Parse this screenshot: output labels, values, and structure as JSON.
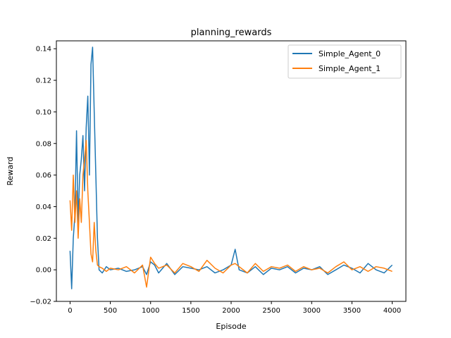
{
  "chart_data": {
    "type": "line",
    "title": "planning_rewards",
    "xlabel": "Episode",
    "ylabel": "Reward",
    "xlim": [
      -170,
      4170
    ],
    "ylim": [
      -0.02,
      0.145
    ],
    "xticks": [
      0,
      500,
      1000,
      1500,
      2000,
      2500,
      3000,
      3500,
      4000
    ],
    "yticks": [
      -0.02,
      0.0,
      0.02,
      0.04,
      0.06,
      0.08,
      0.1,
      0.12,
      0.14
    ],
    "ytick_labels": [
      "−0.02",
      "0.00",
      "0.02",
      "0.04",
      "0.06",
      "0.08",
      "0.10",
      "0.12",
      "0.14"
    ],
    "grid": false,
    "legend": "top-right",
    "series": [
      {
        "name": "Simple_Agent_0",
        "color": "#1f77b4",
        "x": [
          0,
          20,
          40,
          60,
          80,
          100,
          120,
          140,
          160,
          180,
          200,
          220,
          240,
          260,
          280,
          300,
          320,
          340,
          360,
          400,
          450,
          500,
          600,
          700,
          800,
          900,
          950,
          1000,
          1050,
          1100,
          1200,
          1300,
          1400,
          1500,
          1600,
          1700,
          1800,
          1900,
          2000,
          2050,
          2080,
          2100,
          2200,
          2300,
          2400,
          2500,
          2600,
          2700,
          2800,
          2900,
          3000,
          3100,
          3200,
          3300,
          3400,
          3500,
          3600,
          3700,
          3800,
          3900,
          4000
        ],
        "y": [
          0.012,
          -0.012,
          0.02,
          0.035,
          0.088,
          0.03,
          0.06,
          0.07,
          0.085,
          0.05,
          0.09,
          0.11,
          0.06,
          0.13,
          0.141,
          0.1,
          0.06,
          0.02,
          0.0,
          -0.002,
          0.002,
          0.0,
          0.001,
          -0.001,
          0.0,
          0.002,
          -0.003,
          0.005,
          0.003,
          -0.002,
          0.004,
          -0.003,
          0.002,
          0.001,
          0.0,
          0.002,
          -0.002,
          0.0,
          0.003,
          0.013,
          0.005,
          0.0,
          -0.002,
          0.002,
          -0.003,
          0.001,
          0.0,
          0.002,
          -0.002,
          0.001,
          0.0,
          0.002,
          -0.003,
          0.0,
          0.003,
          0.001,
          -0.002,
          0.004,
          0.0,
          -0.002,
          0.003
        ]
      },
      {
        "name": "Simple_Agent_1",
        "color": "#ff7f0e",
        "x": [
          0,
          20,
          40,
          60,
          80,
          100,
          120,
          140,
          160,
          180,
          200,
          220,
          240,
          260,
          280,
          300,
          320,
          340,
          360,
          400,
          450,
          500,
          600,
          700,
          800,
          900,
          950,
          1000,
          1050,
          1100,
          1200,
          1300,
          1400,
          1500,
          1600,
          1700,
          1800,
          1900,
          2000,
          2050,
          2100,
          2200,
          2300,
          2400,
          2500,
          2600,
          2700,
          2800,
          2900,
          3000,
          3100,
          3200,
          3300,
          3400,
          3500,
          3600,
          3700,
          3800,
          3900,
          4000
        ],
        "y": [
          0.044,
          0.025,
          0.06,
          0.03,
          0.05,
          0.02,
          0.045,
          0.03,
          0.06,
          0.07,
          0.082,
          0.05,
          0.03,
          0.01,
          0.005,
          0.03,
          0.012,
          0.003,
          0.002,
          0.001,
          -0.001,
          0.001,
          0.0,
          0.002,
          -0.002,
          0.003,
          -0.011,
          0.008,
          0.004,
          0.001,
          0.003,
          -0.002,
          0.004,
          0.002,
          -0.001,
          0.006,
          0.001,
          -0.002,
          0.003,
          0.004,
          0.002,
          -0.002,
          0.004,
          -0.001,
          0.002,
          0.001,
          0.003,
          -0.001,
          0.002,
          0.0,
          0.001,
          -0.002,
          0.002,
          0.005,
          0.0,
          0.002,
          -0.001,
          0.002,
          0.001,
          -0.001
        ]
      }
    ]
  }
}
